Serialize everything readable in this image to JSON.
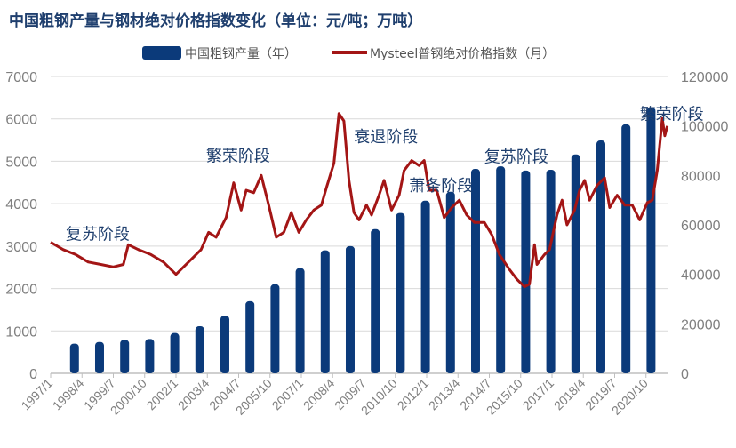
{
  "title": "中国粗钢产量与钢材绝对价格指数变化（单位：元/吨；万吨）",
  "chart_data": {
    "type": "bar+line",
    "title": "中国粗钢产量与钢材绝对价格指数变化（单位：元/吨；万吨）",
    "legend_position": "top",
    "grid": true,
    "colors": {
      "bar": "#0b3a7a",
      "line": "#a31515",
      "grid": "#d9d9d9",
      "axis_text": "#7f7f7f",
      "annotation": "#1f3f6e"
    },
    "left_axis": {
      "ylim": [
        0,
        7000
      ],
      "ticks": [
        "0",
        "1000",
        "2000",
        "3000",
        "4000",
        "5000",
        "6000",
        "7000"
      ]
    },
    "right_axis": {
      "ylim": [
        0,
        120000
      ],
      "ticks": [
        "0",
        "20000",
        "40000",
        "60000",
        "80000",
        "100000",
        "120000"
      ]
    },
    "x_tick_labels": [
      "1997/1",
      "1998/4",
      "1999/7",
      "2000/10",
      "2002/1",
      "2003/4",
      "2004/7",
      "2005/10",
      "2007/1",
      "2008/4",
      "2009/7",
      "2010/10",
      "2012/1",
      "2013/4",
      "2014/7",
      "2015/10",
      "2017/1",
      "2018/4",
      "2019/7",
      "2020/10"
    ],
    "series": [
      {
        "name": "中国粗钢产量（年）",
        "type": "bar",
        "axis": "left",
        "years": [
          1997,
          1998,
          1999,
          2000,
          2001,
          2002,
          2003,
          2004,
          2005,
          2006,
          2007,
          2008,
          2009,
          2010,
          2011,
          2012,
          2013,
          2014,
          2015,
          2016,
          2017,
          2018,
          2019,
          2020
        ],
        "values": [
          700,
          740,
          790,
          810,
          950,
          1110,
          1360,
          1700,
          2100,
          2480,
          2900,
          3000,
          3400,
          3780,
          4070,
          4280,
          4820,
          4880,
          4780,
          4800,
          5160,
          5490,
          5870,
          6270
        ]
      },
      {
        "name": "Mysteel普钢绝对价格指数（月）",
        "type": "line",
        "axis": "right",
        "points": [
          [
            1997.0,
            53000
          ],
          [
            1997.5,
            50000
          ],
          [
            1998.0,
            48000
          ],
          [
            1998.5,
            45000
          ],
          [
            1999.0,
            44000
          ],
          [
            1999.5,
            43000
          ],
          [
            1999.9,
            44000
          ],
          [
            2000.1,
            52000
          ],
          [
            2000.5,
            50000
          ],
          [
            2001.0,
            48000
          ],
          [
            2001.5,
            45000
          ],
          [
            2002.0,
            40000
          ],
          [
            2002.5,
            45000
          ],
          [
            2003.0,
            50000
          ],
          [
            2003.3,
            57000
          ],
          [
            2003.6,
            55000
          ],
          [
            2004.0,
            63000
          ],
          [
            2004.3,
            77000
          ],
          [
            2004.6,
            66000
          ],
          [
            2004.8,
            74000
          ],
          [
            2005.1,
            73000
          ],
          [
            2005.4,
            80000
          ],
          [
            2005.7,
            68000
          ],
          [
            2006.0,
            55000
          ],
          [
            2006.3,
            57000
          ],
          [
            2006.6,
            65000
          ],
          [
            2006.9,
            57000
          ],
          [
            2007.2,
            62000
          ],
          [
            2007.5,
            66000
          ],
          [
            2007.8,
            68000
          ],
          [
            2008.0,
            75000
          ],
          [
            2008.3,
            85000
          ],
          [
            2008.5,
            105000
          ],
          [
            2008.7,
            102000
          ],
          [
            2008.9,
            78000
          ],
          [
            2009.1,
            65000
          ],
          [
            2009.3,
            62000
          ],
          [
            2009.6,
            68000
          ],
          [
            2009.8,
            64000
          ],
          [
            2010.1,
            72000
          ],
          [
            2010.3,
            78000
          ],
          [
            2010.6,
            66000
          ],
          [
            2010.9,
            72000
          ],
          [
            2011.1,
            82000
          ],
          [
            2011.4,
            86000
          ],
          [
            2011.7,
            84000
          ],
          [
            2011.9,
            86000
          ],
          [
            2012.1,
            74000
          ],
          [
            2012.4,
            74000
          ],
          [
            2012.7,
            63000
          ],
          [
            2013.0,
            67000
          ],
          [
            2013.3,
            70000
          ],
          [
            2013.6,
            64000
          ],
          [
            2013.9,
            61000
          ],
          [
            2014.3,
            61000
          ],
          [
            2014.6,
            56000
          ],
          [
            2014.9,
            48000
          ],
          [
            2015.3,
            42000
          ],
          [
            2015.6,
            38000
          ],
          [
            2015.9,
            35000
          ],
          [
            2016.1,
            36000
          ],
          [
            2016.3,
            52000
          ],
          [
            2016.4,
            44000
          ],
          [
            2016.7,
            48000
          ],
          [
            2016.9,
            50000
          ],
          [
            2017.2,
            64000
          ],
          [
            2017.4,
            70000
          ],
          [
            2017.6,
            60000
          ],
          [
            2017.9,
            66000
          ],
          [
            2018.1,
            74000
          ],
          [
            2018.3,
            78000
          ],
          [
            2018.5,
            70000
          ],
          [
            2018.8,
            76000
          ],
          [
            2019.1,
            79000
          ],
          [
            2019.3,
            67000
          ],
          [
            2019.6,
            72000
          ],
          [
            2019.9,
            68000
          ],
          [
            2020.2,
            68000
          ],
          [
            2020.5,
            62000
          ],
          [
            2020.8,
            69000
          ],
          [
            2021.0,
            70000
          ],
          [
            2021.2,
            82000
          ],
          [
            2021.4,
            103000
          ],
          [
            2021.5,
            96000
          ],
          [
            2021.6,
            100000
          ]
        ]
      }
    ],
    "annotations": [
      {
        "text": "复苏阶段",
        "year": 1997.6,
        "value_left": 3150
      },
      {
        "text": "繁荣阶段",
        "year": 2003.2,
        "value_left": 5000
      },
      {
        "text": "衰退阶段",
        "year": 2009.1,
        "value_left": 5450
      },
      {
        "text": "萧条阶段",
        "year": 2011.3,
        "value_left": 4300
      },
      {
        "text": "复苏阶段",
        "year": 2014.3,
        "value_left": 4980
      },
      {
        "text": "繁荣阶段",
        "year": 2020.5,
        "value_left": 5980
      }
    ]
  }
}
